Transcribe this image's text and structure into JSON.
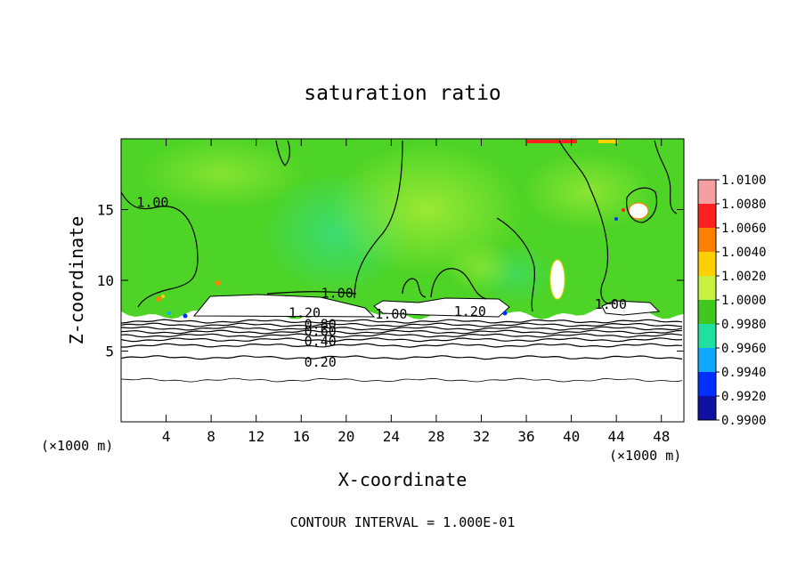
{
  "chart_data": {
    "type": "heatmap",
    "title": "saturation ratio",
    "xlabel": "X-coordinate",
    "ylabel": "Z-coordinate",
    "x_unit_left": "(×1000 m)",
    "x_unit_right": "(×1000 m)",
    "xlim": [
      0,
      50
    ],
    "ylim": [
      0,
      20
    ],
    "x_ticks": [
      4,
      8,
      12,
      16,
      20,
      24,
      28,
      32,
      36,
      40,
      44,
      48
    ],
    "y_ticks": [
      5,
      10,
      15
    ],
    "footer": "CONTOUR INTERVAL = 1.000E-01",
    "colorbar": {
      "levels": [
        "1.0100",
        "1.0080",
        "1.0060",
        "1.0040",
        "1.0020",
        "1.0000",
        "0.9980",
        "0.9960",
        "0.9940",
        "0.9920",
        "0.9900"
      ],
      "colors": [
        "#f5a0a0",
        "#ff2020",
        "#ff7f00",
        "#ffd000",
        "#c8f040",
        "#40c820",
        "#20e0a0",
        "#10a8ff",
        "#0030ff",
        "#1010a0",
        "#600090"
      ]
    },
    "field_color_main": "#4dd426",
    "field_color_light": "#a6ee3a",
    "field_color_cyan": "#3ee080",
    "contour_labels": [
      {
        "text": "1.00",
        "x": 2.8,
        "y": 15.5
      },
      {
        "text": "1.00",
        "x": 19.2,
        "y": 9.1
      },
      {
        "text": "1.00",
        "x": 24.0,
        "y": 7.6
      },
      {
        "text": "1.00",
        "x": 43.5,
        "y": 8.3
      },
      {
        "text": "1.20",
        "x": 16.3,
        "y": 7.7
      },
      {
        "text": "1.20",
        "x": 31.0,
        "y": 7.8
      },
      {
        "text": "0.80",
        "x": 17.7,
        "y": 6.9
      },
      {
        "text": "0.60",
        "x": 17.7,
        "y": 6.4
      },
      {
        "text": "0.40",
        "x": 17.7,
        "y": 5.7
      },
      {
        "text": "0.20",
        "x": 17.7,
        "y": 4.2
      }
    ],
    "stable_contours_z": [
      7.1,
      6.85,
      6.6,
      6.35,
      6.1,
      5.8,
      5.4,
      4.55,
      2.95
    ]
  }
}
